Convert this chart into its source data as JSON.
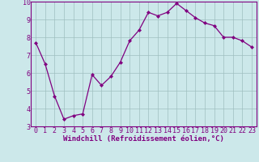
{
  "x": [
    0,
    1,
    2,
    3,
    4,
    5,
    6,
    7,
    8,
    9,
    10,
    11,
    12,
    13,
    14,
    15,
    16,
    17,
    18,
    19,
    20,
    21,
    22,
    23
  ],
  "y": [
    7.7,
    6.5,
    4.7,
    3.4,
    3.6,
    3.7,
    5.9,
    5.3,
    5.8,
    6.6,
    7.8,
    8.4,
    9.4,
    9.2,
    9.4,
    9.9,
    9.5,
    9.1,
    8.8,
    8.65,
    8.0,
    8.0,
    7.8,
    7.45
  ],
  "ylim": [
    3,
    10
  ],
  "yticks": [
    3,
    4,
    5,
    6,
    7,
    8,
    9,
    10
  ],
  "xticks": [
    0,
    1,
    2,
    3,
    4,
    5,
    6,
    7,
    8,
    9,
    10,
    11,
    12,
    13,
    14,
    15,
    16,
    17,
    18,
    19,
    20,
    21,
    22,
    23
  ],
  "xlabel": "Windchill (Refroidissement éolien,°C)",
  "line_color": "#800080",
  "marker": "D",
  "marker_size": 2.0,
  "bg_color": "#cce8ea",
  "grid_color": "#9fbfbf",
  "xlabel_fontsize": 6.5,
  "tick_fontsize": 6.0,
  "linewidth": 0.9
}
